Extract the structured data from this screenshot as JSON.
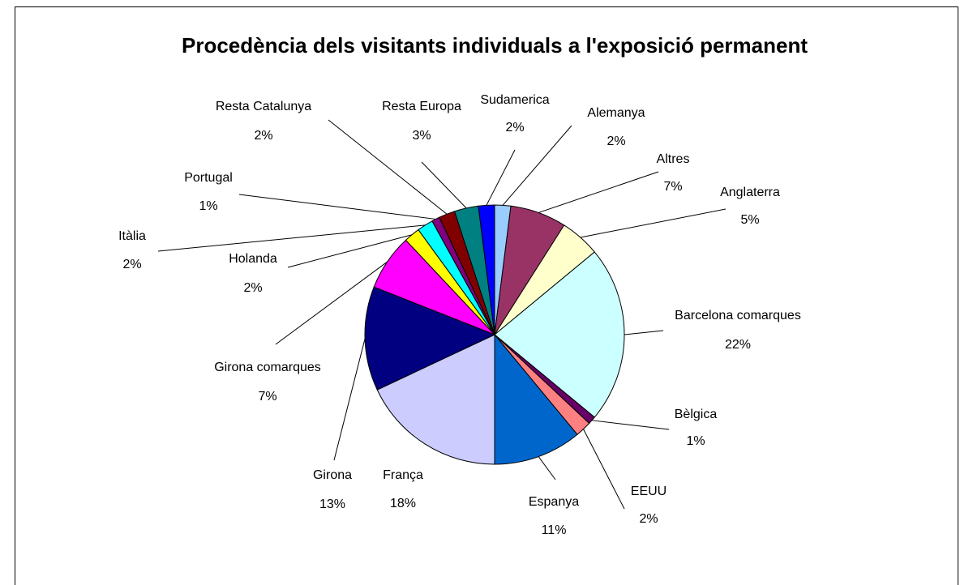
{
  "chart_data": {
    "type": "pie",
    "title": "Procedència dels visitants individuals a l'exposició permanent",
    "categories": [
      "Alemanya",
      "Altres",
      "Anglaterra",
      "Barcelona comarques",
      "Bèlgica",
      "EEUU",
      "Espanya",
      "França",
      "Girona",
      "Girona comarques",
      "Holanda",
      "Itàlia",
      "Portugal",
      "Resta Catalunya",
      "Resta Europa",
      "Sudamerica"
    ],
    "values": [
      2,
      7,
      5,
      22,
      1,
      2,
      11,
      18,
      13,
      7,
      2,
      2,
      1,
      2,
      3,
      2
    ],
    "value_labels": [
      "2%",
      "7%",
      "5%",
      "22%",
      "1%",
      "2%",
      "11%",
      "18%",
      "13%",
      "7%",
      "2%",
      "2%",
      "1%",
      "2%",
      "3%",
      "2%"
    ],
    "colors": [
      "#99ccff",
      "#993366",
      "#ffffcc",
      "#ccffff",
      "#660066",
      "#ff8080",
      "#0066cc",
      "#ccccff",
      "#000080",
      "#ff00ff",
      "#ffff00",
      "#00ffff",
      "#800080",
      "#800000",
      "#008080",
      "#0000ff"
    ]
  }
}
